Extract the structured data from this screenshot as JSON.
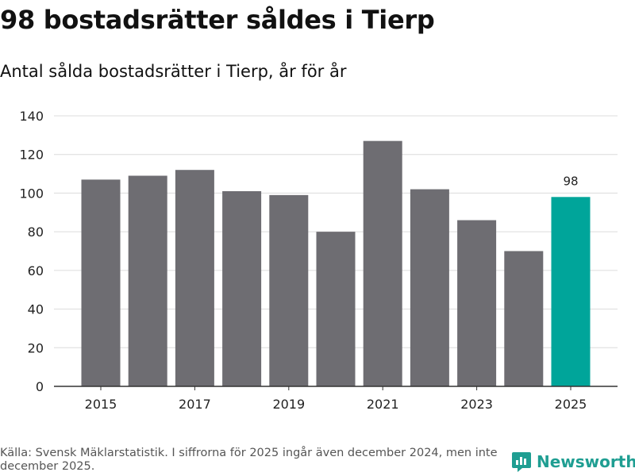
{
  "title": "98 bostadsrätter såldes i Tierp",
  "subtitle": "Antal sålda bostadsrätter i Tierp, år för år",
  "chart_data": {
    "type": "bar",
    "categories": [
      "2015",
      "2016",
      "2017",
      "2018",
      "2019",
      "2020",
      "2021",
      "2022",
      "2023",
      "2024",
      "2025"
    ],
    "values": [
      107,
      109,
      112,
      101,
      99,
      80,
      127,
      102,
      86,
      70,
      98
    ],
    "x_tick_labels": [
      "2015",
      "2017",
      "2019",
      "2021",
      "2023",
      "2025"
    ],
    "y_ticks": [
      "0",
      "20",
      "40",
      "60",
      "80",
      "100",
      "120",
      "140"
    ],
    "ylim": [
      0,
      140
    ],
    "highlight_category": "2025",
    "data_labels": [
      {
        "category": "2025",
        "label": "98"
      }
    ],
    "colors": {
      "bar": "#6e6d72",
      "highlight": "#00a59a",
      "grid": "#dcdcdc",
      "axis": "#333333"
    },
    "title": "98 bostadsrätter såldes i Tierp",
    "subtitle": "Antal sålda bostadsrätter i Tierp, år för år",
    "xlabel": "",
    "ylabel": ""
  },
  "source": "Källa: Svensk Mäklarstatistik. I siffrorna för 2025 ingår även december 2024, men inte december 2025.",
  "brand": {
    "name": "Newsworthy",
    "icon": "newsworthy-logo-icon",
    "color": "#1f9e92"
  }
}
